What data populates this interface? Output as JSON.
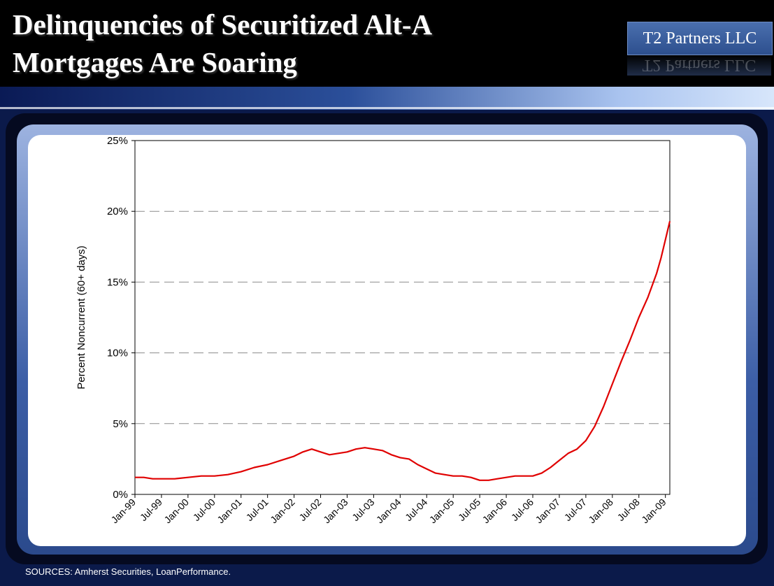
{
  "slide": {
    "title_line1": "Delinquencies of Securitized Alt-A",
    "title_line2": "Mortgages Are Soaring",
    "logo": "T2 Partners LLC",
    "sources": "SOURCES: Amherst Securities, LoanPerformance."
  },
  "colors": {
    "line": "#e00000",
    "header_bg": "#000000",
    "slide_bg": "#0b1a4a"
  },
  "chart_data": {
    "type": "line",
    "title": "",
    "xlabel": "",
    "ylabel": "Percent Noncurrent (60+ days)",
    "ylim": [
      0,
      25
    ],
    "y_ticks": [
      0,
      5,
      10,
      15,
      20,
      25
    ],
    "y_tick_labels": [
      "0%",
      "5%",
      "10%",
      "15%",
      "20%",
      "25%"
    ],
    "grid": "horizontal dashed",
    "x_tick_labels": [
      "Jan-99",
      "Jul-99",
      "Jan-00",
      "Jul-00",
      "Jan-01",
      "Jul-01",
      "Jan-02",
      "Jul-02",
      "Jan-03",
      "Jul-03",
      "Jan-04",
      "Jul-04",
      "Jan-05",
      "Jul-05",
      "Jan-06",
      "Jul-06",
      "Jan-07",
      "Jul-07",
      "Jan-08",
      "Jul-08",
      "Jan-09"
    ],
    "x_start": "Jan-99",
    "x_end": "Feb-09",
    "series": [
      {
        "color": "#e00000",
        "points": [
          [
            "Jan-99",
            1.2
          ],
          [
            "Mar-99",
            1.2
          ],
          [
            "May-99",
            1.1
          ],
          [
            "Jul-99",
            1.1
          ],
          [
            "Oct-99",
            1.1
          ],
          [
            "Jan-00",
            1.2
          ],
          [
            "Apr-00",
            1.3
          ],
          [
            "Jul-00",
            1.3
          ],
          [
            "Oct-00",
            1.4
          ],
          [
            "Jan-01",
            1.6
          ],
          [
            "Apr-01",
            1.9
          ],
          [
            "Jul-01",
            2.1
          ],
          [
            "Oct-01",
            2.4
          ],
          [
            "Jan-02",
            2.7
          ],
          [
            "Mar-02",
            3.0
          ],
          [
            "May-02",
            3.2
          ],
          [
            "Jul-02",
            3.0
          ],
          [
            "Sep-02",
            2.8
          ],
          [
            "Nov-02",
            2.9
          ],
          [
            "Jan-03",
            3.0
          ],
          [
            "Mar-03",
            3.2
          ],
          [
            "May-03",
            3.3
          ],
          [
            "Jul-03",
            3.2
          ],
          [
            "Sep-03",
            3.1
          ],
          [
            "Nov-03",
            2.8
          ],
          [
            "Jan-04",
            2.6
          ],
          [
            "Mar-04",
            2.5
          ],
          [
            "May-04",
            2.1
          ],
          [
            "Jul-04",
            1.8
          ],
          [
            "Sep-04",
            1.5
          ],
          [
            "Nov-04",
            1.4
          ],
          [
            "Jan-05",
            1.3
          ],
          [
            "Mar-05",
            1.3
          ],
          [
            "May-05",
            1.2
          ],
          [
            "Jul-05",
            1.0
          ],
          [
            "Sep-05",
            1.0
          ],
          [
            "Nov-05",
            1.1
          ],
          [
            "Jan-06",
            1.2
          ],
          [
            "Mar-06",
            1.3
          ],
          [
            "May-06",
            1.3
          ],
          [
            "Jul-06",
            1.3
          ],
          [
            "Sep-06",
            1.5
          ],
          [
            "Nov-06",
            1.9
          ],
          [
            "Jan-07",
            2.4
          ],
          [
            "Mar-07",
            2.9
          ],
          [
            "May-07",
            3.2
          ],
          [
            "Jul-07",
            3.8
          ],
          [
            "Sep-07",
            4.8
          ],
          [
            "Nov-07",
            6.2
          ],
          [
            "Jan-08",
            7.8
          ],
          [
            "Mar-08",
            9.4
          ],
          [
            "May-08",
            10.9
          ],
          [
            "Jul-08",
            12.5
          ],
          [
            "Sep-08",
            13.9
          ],
          [
            "Nov-08",
            15.6
          ],
          [
            "Dec-08",
            16.7
          ],
          [
            "Jan-09",
            18.0
          ],
          [
            "Feb-09",
            19.3
          ]
        ]
      }
    ]
  }
}
